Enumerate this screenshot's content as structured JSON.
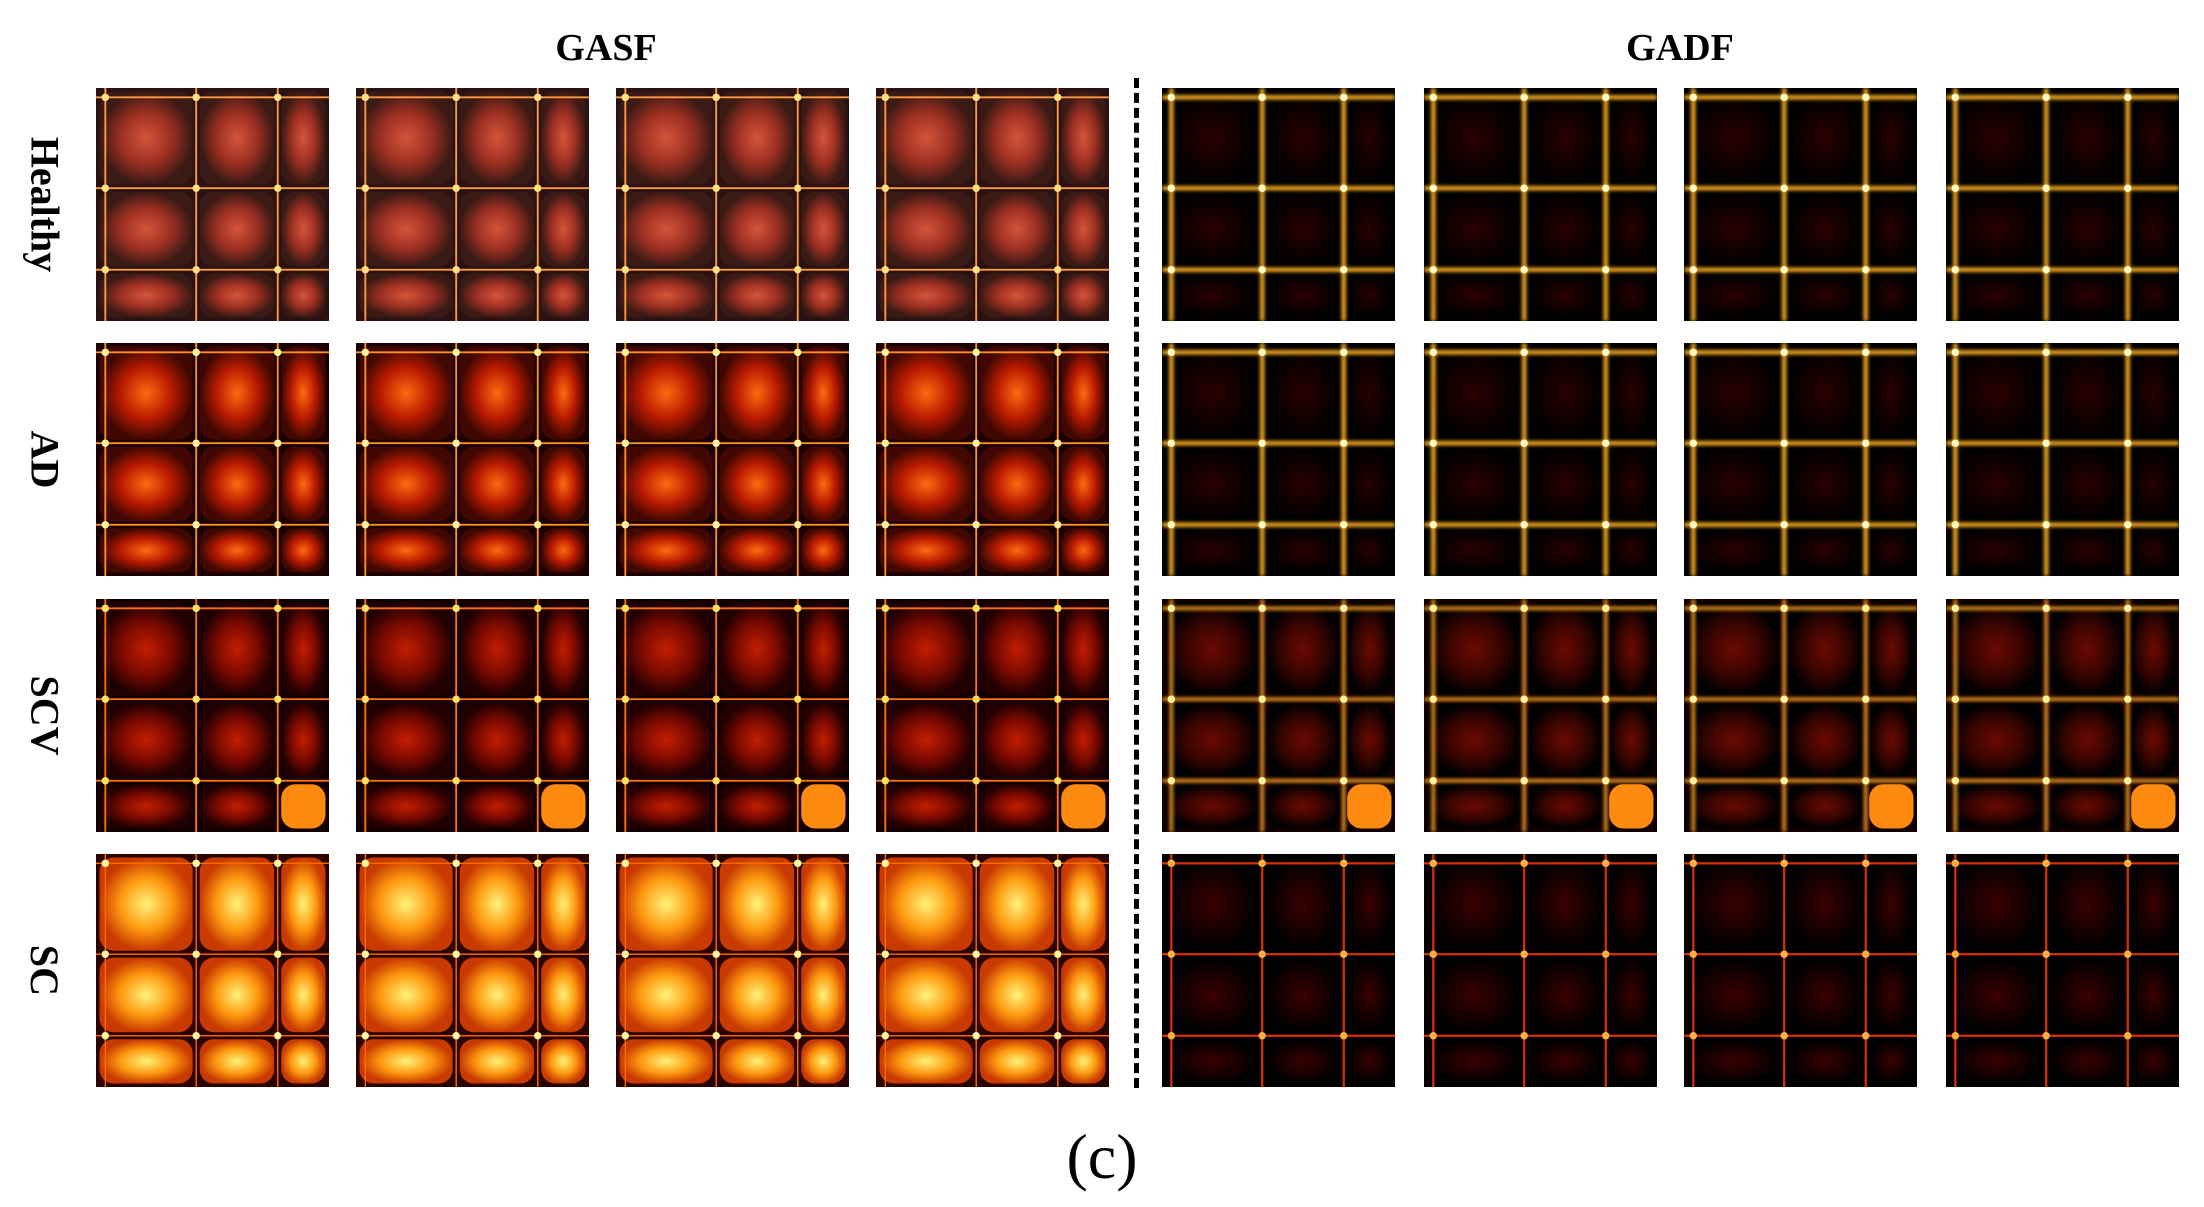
{
  "groups": [
    {
      "id": "gasf",
      "title": "GASF"
    },
    {
      "id": "gadf",
      "title": "GADF"
    }
  ],
  "rows": [
    {
      "label": "Healthy",
      "gasf_style": "dusty",
      "gadf_style": "grid"
    },
    {
      "label": "AD",
      "gasf_style": "red",
      "gadf_style": "grid"
    },
    {
      "label": "SCV",
      "gasf_style": "split",
      "gadf_style": "noisy"
    },
    {
      "label": "SC",
      "gasf_style": "bright",
      "gadf_style": "dark"
    }
  ],
  "tiles_per_group": 4,
  "caption": "(c)",
  "colormap": [
    "#000000",
    "#3c0000",
    "#8a0a00",
    "#d22a00",
    "#ff6a00",
    "#ffb000",
    "#fff090"
  ]
}
